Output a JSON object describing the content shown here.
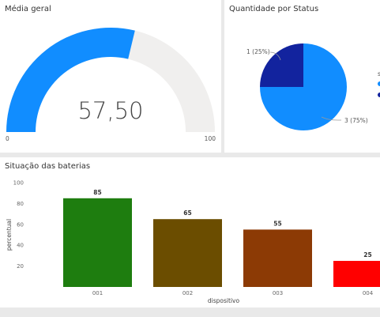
{
  "gauge": {
    "title": "Média geral",
    "value_text": "57,50",
    "min_label": "0",
    "max_label": "100",
    "value": 57.5,
    "min": 0,
    "max": 100,
    "fill_color": "#118dff",
    "track_color": "#f0efee"
  },
  "pie": {
    "title": "Quantidade por Status",
    "legend_partial": "s",
    "chart_data": {
      "type": "pie",
      "slices": [
        {
          "label": "3 (75%)",
          "value": 3,
          "color": "#118dff"
        },
        {
          "label": "1 (25%)",
          "value": 1,
          "color": "#12239e"
        }
      ]
    }
  },
  "bars": {
    "title": "Situação das baterias",
    "chart_data": {
      "type": "bar",
      "categories": [
        "001",
        "002",
        "003",
        "004"
      ],
      "values": [
        85,
        65,
        55,
        25
      ],
      "colors": [
        "#1e7d0f",
        "#6b4d00",
        "#8c3a05",
        "#ff0000"
      ],
      "xlabel": "dispositivo",
      "ylabel": "percentual",
      "yticks": [
        20,
        40,
        60,
        80,
        100
      ],
      "ylim": [
        0,
        100
      ]
    }
  }
}
